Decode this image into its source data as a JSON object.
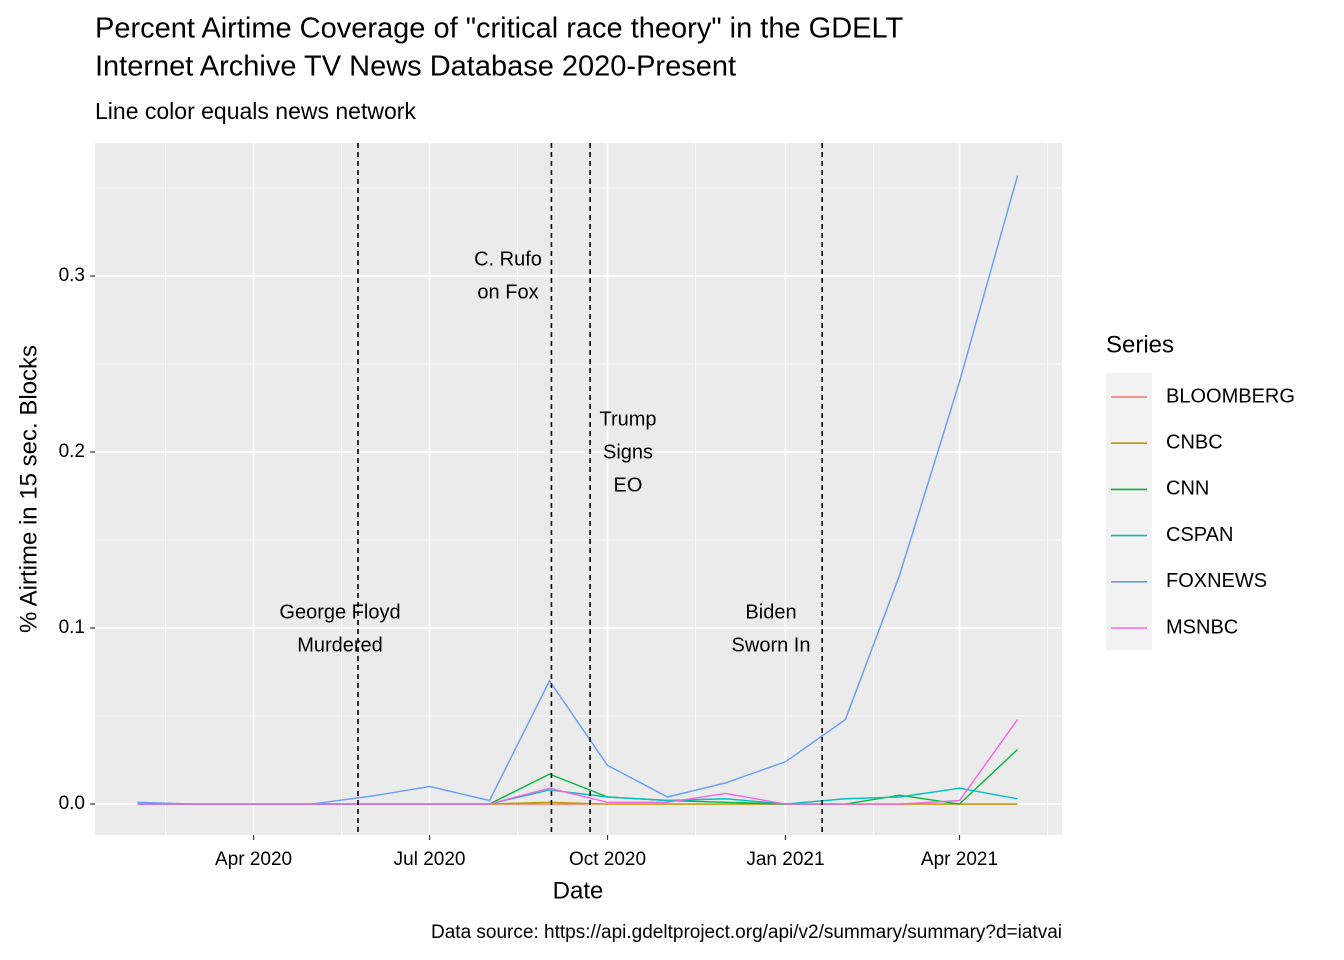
{
  "chart_data": {
    "type": "line",
    "title": [
      "Percent Airtime Coverage of \"critical race theory\" in the GDELT",
      "Internet Archive TV News Database 2020-Present"
    ],
    "subtitle": "Line color equals news network",
    "x_label": "Date",
    "y_label": "% Airtime in 15 sec. Blocks",
    "caption": "Data source: https://api.gdeltproject.org/api/v2/summary/summary?d=iatvai",
    "legend_title": "Series",
    "legend_position": "right",
    "grid": true,
    "x": [
      "2020-02",
      "2020-03",
      "2020-04",
      "2020-05",
      "2020-06",
      "2020-07",
      "2020-08",
      "2020-09",
      "2020-10",
      "2020-11",
      "2020-12",
      "2021-01",
      "2021-02",
      "2021-03",
      "2021-04",
      "2021-05"
    ],
    "series": [
      {
        "name": "BLOOMBERG",
        "color": "#F8766D",
        "values": [
          0,
          0,
          0,
          0,
          0,
          0,
          0,
          0,
          0,
          0,
          0,
          0,
          0,
          0,
          0,
          0
        ]
      },
      {
        "name": "CNBC",
        "color": "#B79F00",
        "values": [
          0,
          0,
          0,
          0,
          0,
          0,
          0,
          0.001,
          0,
          0,
          0,
          0,
          0,
          0,
          0,
          0
        ]
      },
      {
        "name": "CNN",
        "color": "#00BA38",
        "values": [
          0,
          0,
          0,
          0,
          0,
          0,
          0,
          0.017,
          0.004,
          0.002,
          0.001,
          0,
          0,
          0.005,
          0,
          0.031
        ]
      },
      {
        "name": "CSPAN",
        "color": "#00BFC4",
        "values": [
          0,
          0,
          0,
          0,
          0,
          0,
          0,
          0.008,
          0.004,
          0.002,
          0.003,
          0,
          0.003,
          0.004,
          0.009,
          0.003
        ]
      },
      {
        "name": "FOXNEWS",
        "color": "#619CFF",
        "values": [
          0.001,
          0,
          0,
          0,
          0.0045,
          0.01,
          0.002,
          0.07,
          0.022,
          0.004,
          0.012,
          0.024,
          0.048,
          0.13,
          0.24,
          0.357
        ]
      },
      {
        "name": "MSNBC",
        "color": "#F564E3",
        "values": [
          0,
          0,
          0,
          0,
          0,
          0,
          0,
          0.009,
          0.001,
          0.001,
          0.006,
          0,
          0,
          0,
          0.002,
          0.048
        ]
      }
    ],
    "xlim": [
      "2020-01-10",
      "2021-05-24"
    ],
    "xticks": [
      {
        "value": "2020-04",
        "label": "Apr 2020"
      },
      {
        "value": "2020-07",
        "label": "Jul 2020"
      },
      {
        "value": "2020-10",
        "label": "Oct 2020"
      },
      {
        "value": "2021-01",
        "label": "Jan 2021"
      },
      {
        "value": "2021-04",
        "label": "Apr 2021"
      }
    ],
    "ylim": [
      -0.0176,
      0.3756
    ],
    "yticks": [
      {
        "value": 0,
        "label": "0.0"
      },
      0.1,
      0.2,
      0.3
    ],
    "annotations": [
      {
        "x": "2020-05-25",
        "label": [
          "George Floyd",
          "Murdered"
        ]
      },
      {
        "x": "2020-09-02",
        "label": [
          "C. Rufo",
          "on Fox"
        ]
      },
      {
        "x": "2020-09-22",
        "label": [
          "Trump",
          "Signs",
          "EO"
        ]
      },
      {
        "x": "2021-01-20",
        "label": [
          "Biden",
          "Sworn In"
        ]
      }
    ]
  }
}
